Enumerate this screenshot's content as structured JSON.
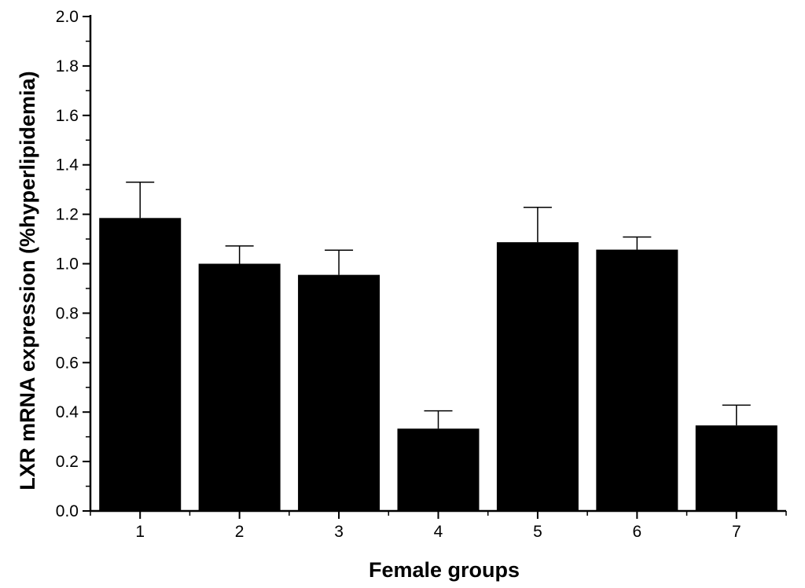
{
  "chart_data": {
    "type": "bar",
    "categories": [
      "1",
      "2",
      "3",
      "4",
      "5",
      "6",
      "7"
    ],
    "values": [
      1.185,
      1.0,
      0.955,
      0.333,
      1.087,
      1.057,
      0.346
    ],
    "error_upper": [
      1.33,
      1.072,
      1.055,
      0.405,
      1.228,
      1.108,
      0.428
    ],
    "xlabel": "Female groups",
    "ylabel": "LXR mRNA expression (%hyperlipidemia)",
    "ylim": [
      0,
      2.0
    ],
    "yticks": [
      "0.0",
      "0.2",
      "0.4",
      "0.6",
      "0.8",
      "1.0",
      "1.2",
      "1.4",
      "1.6",
      "1.8",
      "2.0"
    ],
    "grid": false,
    "bar_color": "#000000"
  }
}
